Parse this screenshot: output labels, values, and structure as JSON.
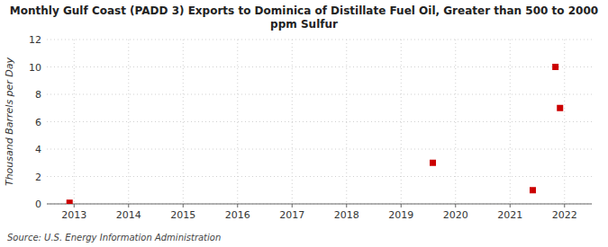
{
  "chart_data": {
    "type": "scatter",
    "title": "Monthly Gulf Coast (PADD 3) Exports to Dominica of Distillate Fuel Oil, Greater than 500 to 2000\nppm Sulfur",
    "y_label": "Thousand Barrels per Day",
    "source": "Source: U.S. Energy Information Administration",
    "x": [
      2012.917,
      2019.583,
      2021.417,
      2021.833,
      2021.917
    ],
    "values": [
      0.083,
      3.0,
      1.0,
      10.0,
      7.0
    ],
    "color": "#cc0000",
    "marker": "square",
    "xlim": [
      2012.5,
      2022.5
    ],
    "ylim": [
      0,
      12
    ],
    "xticks": [
      2013,
      2014,
      2015,
      2016,
      2017,
      2018,
      2019,
      2020,
      2021,
      2022
    ],
    "yticks": [
      0,
      2,
      4,
      6,
      8,
      10,
      12
    ],
    "grid": true
  }
}
